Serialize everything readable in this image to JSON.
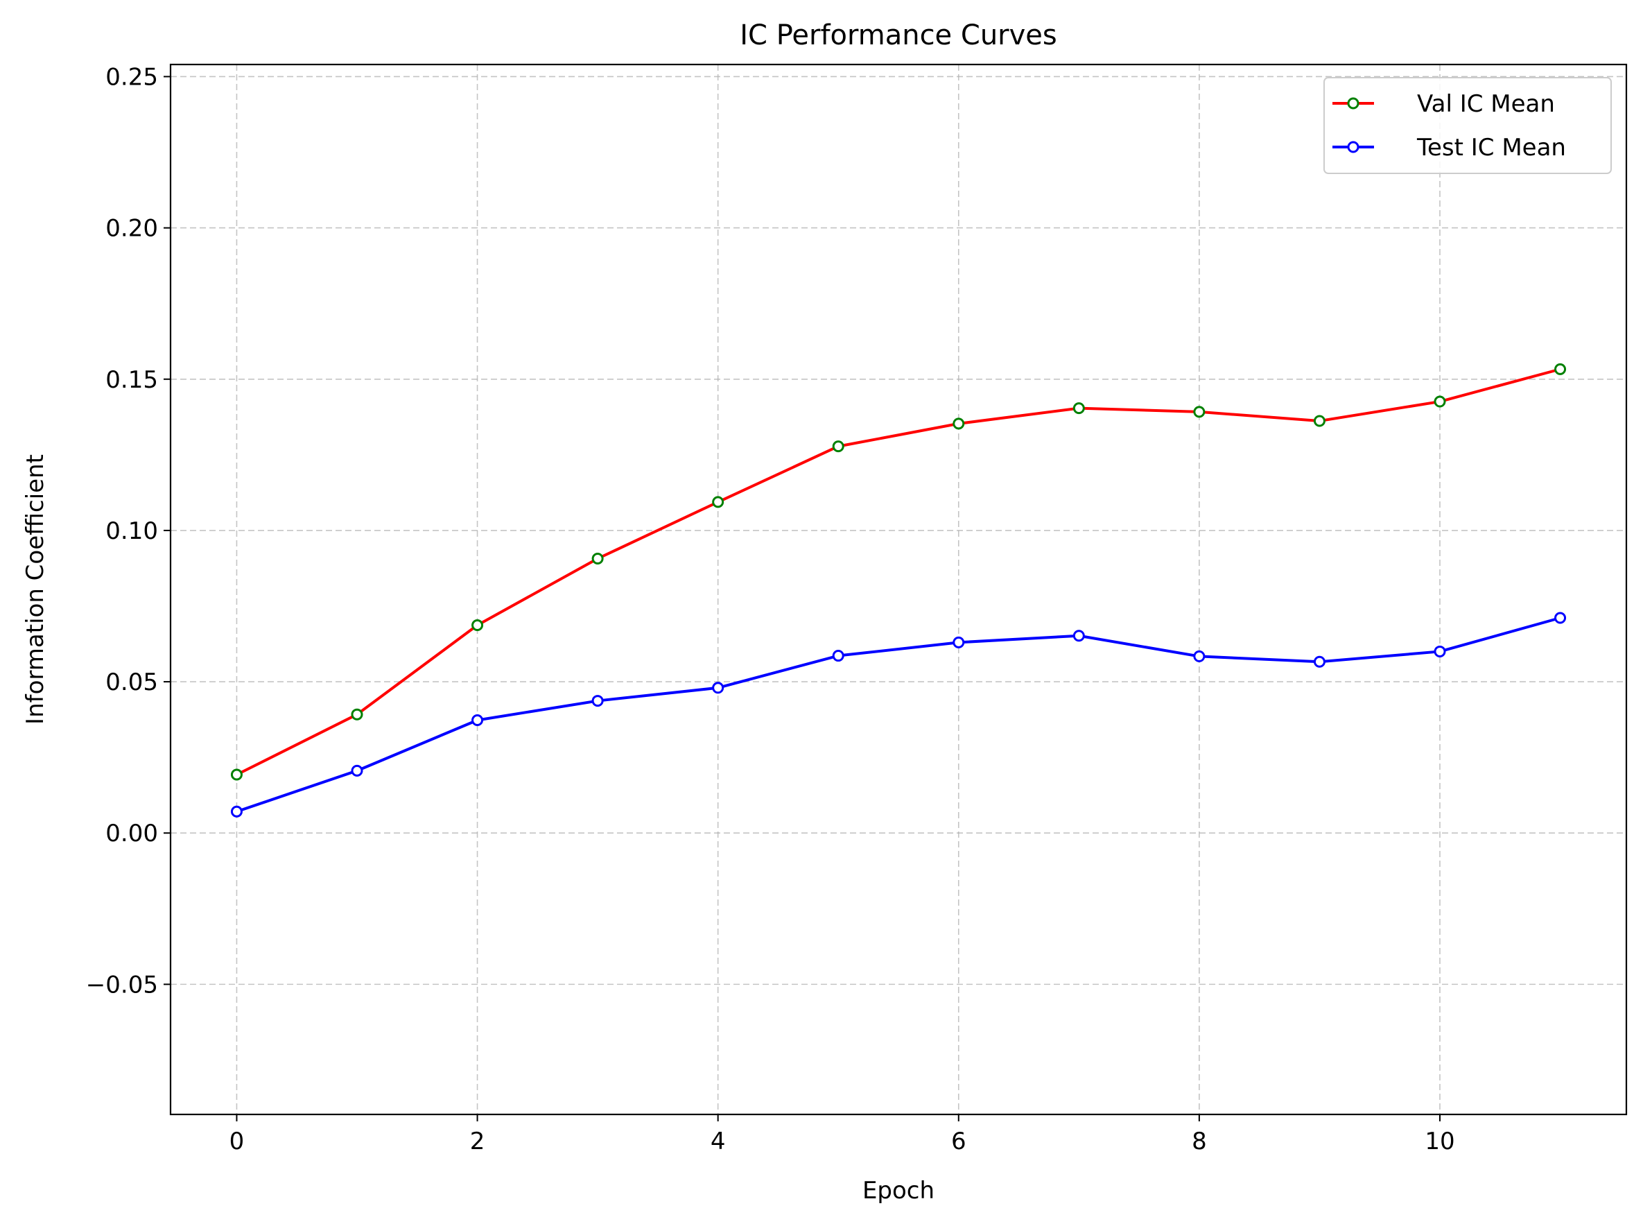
{
  "chart_data": {
    "type": "line",
    "title": "IC Performance Curves",
    "xlabel": "Epoch",
    "ylabel": "Information Coefficient",
    "xlim": [
      -0.55,
      11.55
    ],
    "ylim": [
      -0.093,
      0.254
    ],
    "xticks": [
      0,
      2,
      4,
      6,
      8,
      10
    ],
    "xtick_labels": [
      "0",
      "2",
      "4",
      "6",
      "8",
      "10"
    ],
    "yticks": [
      -0.05,
      0.0,
      0.05,
      0.1,
      0.15,
      0.2,
      0.25
    ],
    "ytick_labels": [
      "−0.05",
      "0.00",
      "0.05",
      "0.10",
      "0.15",
      "0.20",
      "0.25"
    ],
    "grid": true,
    "grid_style": "dashed",
    "legend_position": "top-right",
    "x": [
      0,
      1,
      2,
      3,
      4,
      5,
      6,
      7,
      8,
      9,
      10,
      11
    ],
    "series": [
      {
        "name": "Val IC Mean",
        "line_color": "#ff0000",
        "marker_edge_color": "#008000",
        "marker_face_color": "#ffffff",
        "values": [
          0.0193,
          0.0392,
          0.0687,
          0.0907,
          0.1094,
          0.1278,
          0.1353,
          0.1404,
          0.1392,
          0.1362,
          0.1426,
          0.1533
        ]
      },
      {
        "name": "Test IC Mean",
        "line_color": "#0000ff",
        "marker_edge_color": "#0000ff",
        "marker_face_color": "#ffffff",
        "values": [
          0.0071,
          0.0206,
          0.0373,
          0.0437,
          0.048,
          0.0586,
          0.063,
          0.0652,
          0.0584,
          0.0566,
          0.06,
          0.0711
        ]
      }
    ]
  }
}
